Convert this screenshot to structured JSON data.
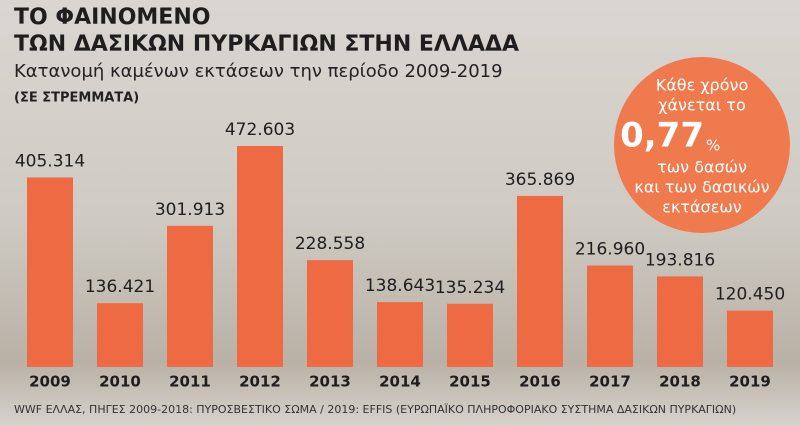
{
  "chart_data": {
    "type": "bar",
    "title": [
      "ΤΟ ΦΑΙΝΟΜΕΝΟ",
      "ΤΩΝ ΔΑΣΙΚΩΝ ΠΥΡΚΑΓΙΩΝ ΣΤΗΝ ΕΛΛΑΔΑ"
    ],
    "subtitle": "Κατανομή καμένων εκτάσεων την περίοδο 2009-2019",
    "unit_note": "(ΣΕ ΣΤΡΕΜΜΑΤΑ)",
    "categories": [
      "2009",
      "2010",
      "2011",
      "2012",
      "2013",
      "2014",
      "2015",
      "2016",
      "2017",
      "2018",
      "2019"
    ],
    "values": [
      405314,
      136421,
      301913,
      472603,
      228558,
      138643,
      135234,
      365869,
      216960,
      193816,
      120450
    ],
    "value_labels": [
      "405.314",
      "136.421",
      "301.913",
      "472.603",
      "228.558",
      "138.643",
      "135.234",
      "365.869",
      "216.960",
      "193.816",
      "120.450"
    ],
    "color": "#ee6a43",
    "callout": {
      "lines_top": [
        "Κάθε χρόνο",
        "χάνεται το"
      ],
      "figure": "0,77",
      "figure_unit": "%",
      "lines_bottom": [
        "των δασών",
        "και των δασικών",
        "εκτάσεων"
      ],
      "color": "#ef7a4e"
    },
    "source": "WWF ΕΛΛΑΣ, ΠΗΓΕΣ 2009-2018: ΠΥΡΟΣΒΕΣΤΙΚΟ ΣΩΜΑ / 2019: EFFIS (ΕΥΡΩΠΑΪΚΟ ΠΛΗΡΟΦΟΡΙΑΚΟ ΣΥΣΤΗΜΑ ΔΑΣΙΚΩΝ ΠΥΡΚΑΓΙΩΝ)"
  }
}
